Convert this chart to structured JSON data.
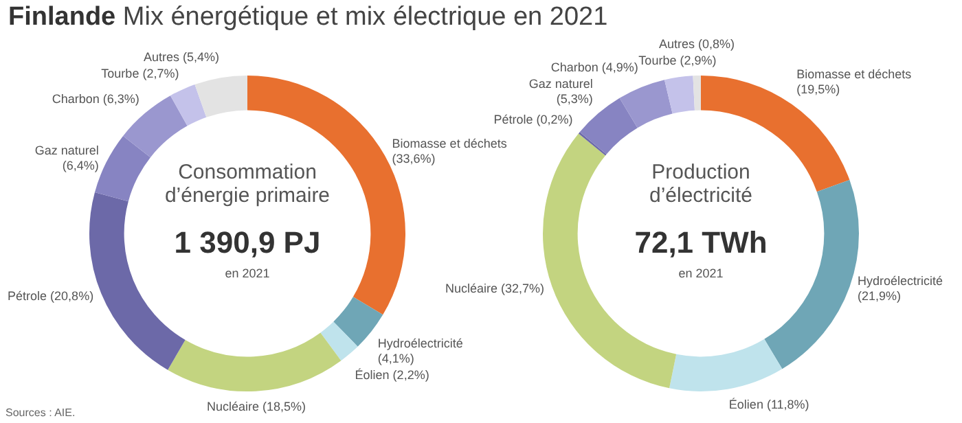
{
  "chart_data": [
    {
      "type": "donut",
      "title": "Finlande",
      "subtitle": "Mix énergétique et mix électrique en 2021",
      "categories": [
        "Biomasse et déchets",
        "Hydroélectricité",
        "Éolien",
        "Nucléaire",
        "Pétrole",
        "Gaz naturel",
        "Charbon",
        "Tourbe",
        "Autres"
      ],
      "values": [
        33.6,
        4.1,
        2.2,
        18.5,
        20.8,
        6.4,
        6.3,
        2.7,
        5.4
      ],
      "value_labels": [
        "(33,6%)",
        "(4,1%)",
        "(2,2%)",
        "(18,5%)",
        "(20,8%)",
        "(6,4%)",
        "(6,3%)",
        "(2,7%)",
        "(5,4%)"
      ],
      "colors": [
        "#e8702f",
        "#6fa6b6",
        "#bfe3ec",
        "#c3d480",
        "#6c69a8",
        "#8784c2",
        "#9a97cf",
        "#c4c2ea",
        "#e3e3e3"
      ],
      "annotations": [
        "Consommation d’énergie primaire",
        "1 390,9 PJ",
        "en 2021",
        "Sources : AIE."
      ]
    },
    {
      "type": "donut",
      "categories": [
        "Biomasse et déchets",
        "Hydroélectricité",
        "Éolien",
        "Nucléaire",
        "Pétrole",
        "Gaz naturel",
        "Charbon",
        "Tourbe",
        "Autres"
      ],
      "values": [
        19.5,
        21.9,
        11.8,
        32.7,
        0.2,
        5.3,
        4.9,
        2.9,
        0.8
      ],
      "value_labels": [
        "(19,5%)",
        "(21,9%)",
        "(11,8%)",
        "(32,7%)",
        "(0,2%)",
        "(5,3%)",
        "(4,9%)",
        "(2,9%)",
        "(0,8%)"
      ],
      "colors": [
        "#e8702f",
        "#6fa6b6",
        "#bfe3ec",
        "#c3d480",
        "#6c69a8",
        "#8784c2",
        "#9a97cf",
        "#c4c2ea",
        "#e3e3e3"
      ],
      "annotations": [
        "Production d’électricité",
        "72,1 TWh",
        "en 2021"
      ]
    }
  ]
}
